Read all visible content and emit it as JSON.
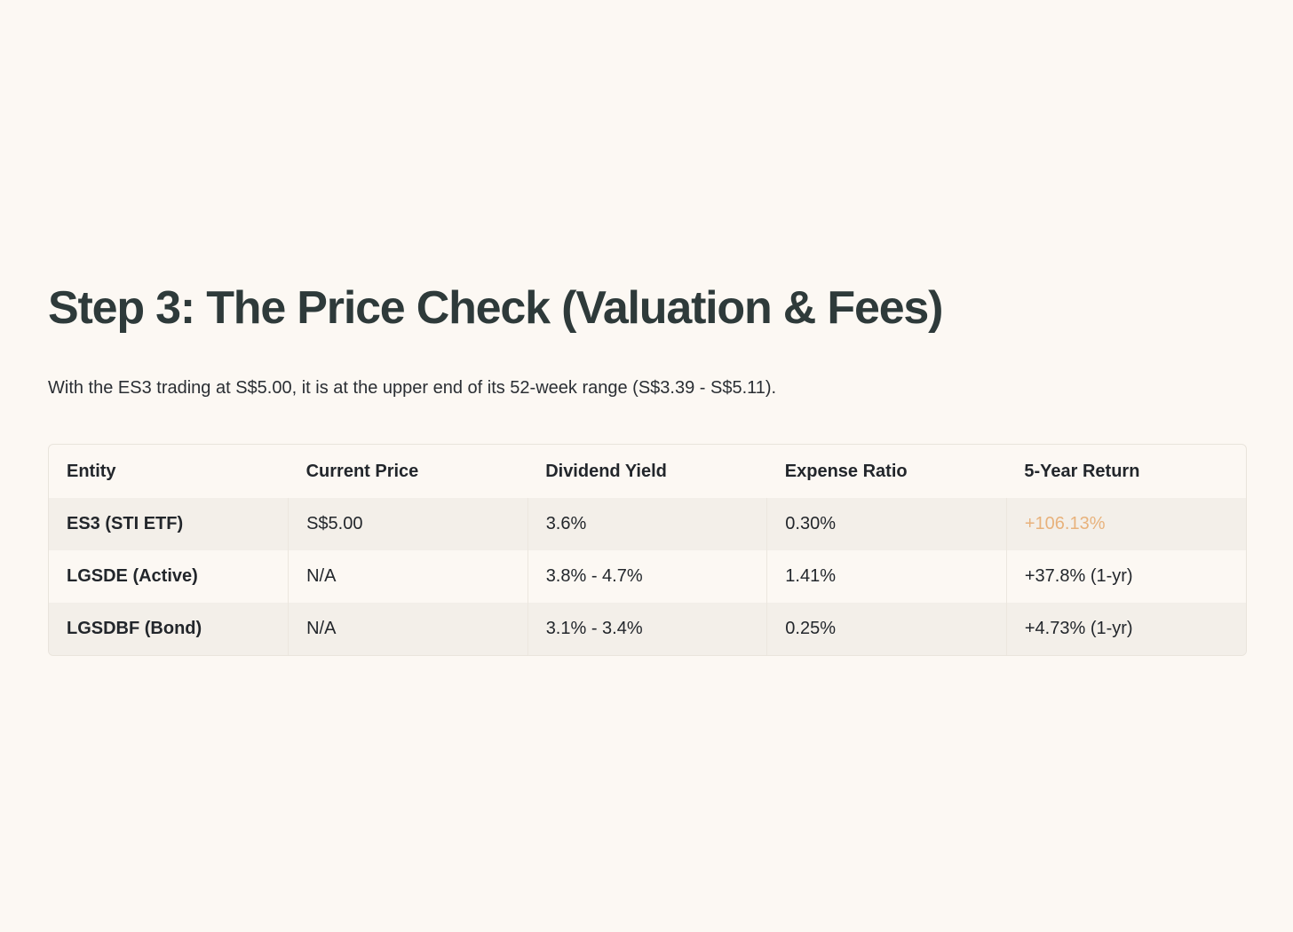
{
  "heading": "Step 3: The Price Check (Valuation & Fees)",
  "intro": "With the ES3 trading at S$5.00, it is at the upper end of its 52-week range (S$3.39 - S$5.11).",
  "table": {
    "headers": [
      "Entity",
      "Current Price",
      "Dividend Yield",
      "Expense Ratio",
      "5-Year Return"
    ],
    "rows": [
      [
        "ES3 (STI ETF)",
        "S$5.00",
        "3.6%",
        "0.30%",
        "+106.13%"
      ],
      [
        "LGSDE (Active)",
        "N/A",
        "3.8% - 4.7%",
        "1.41%",
        "+37.8% (1-yr)"
      ],
      [
        "LGSDBF (Bond)",
        "N/A",
        "3.1% - 3.4%",
        "0.25%",
        "+4.73% (1-yr)"
      ]
    ]
  },
  "colors": {
    "background": "#fcf8f3",
    "heading": "#2e3a3a",
    "highlight": "#e8b27c",
    "stripe": "#f3efe9"
  }
}
